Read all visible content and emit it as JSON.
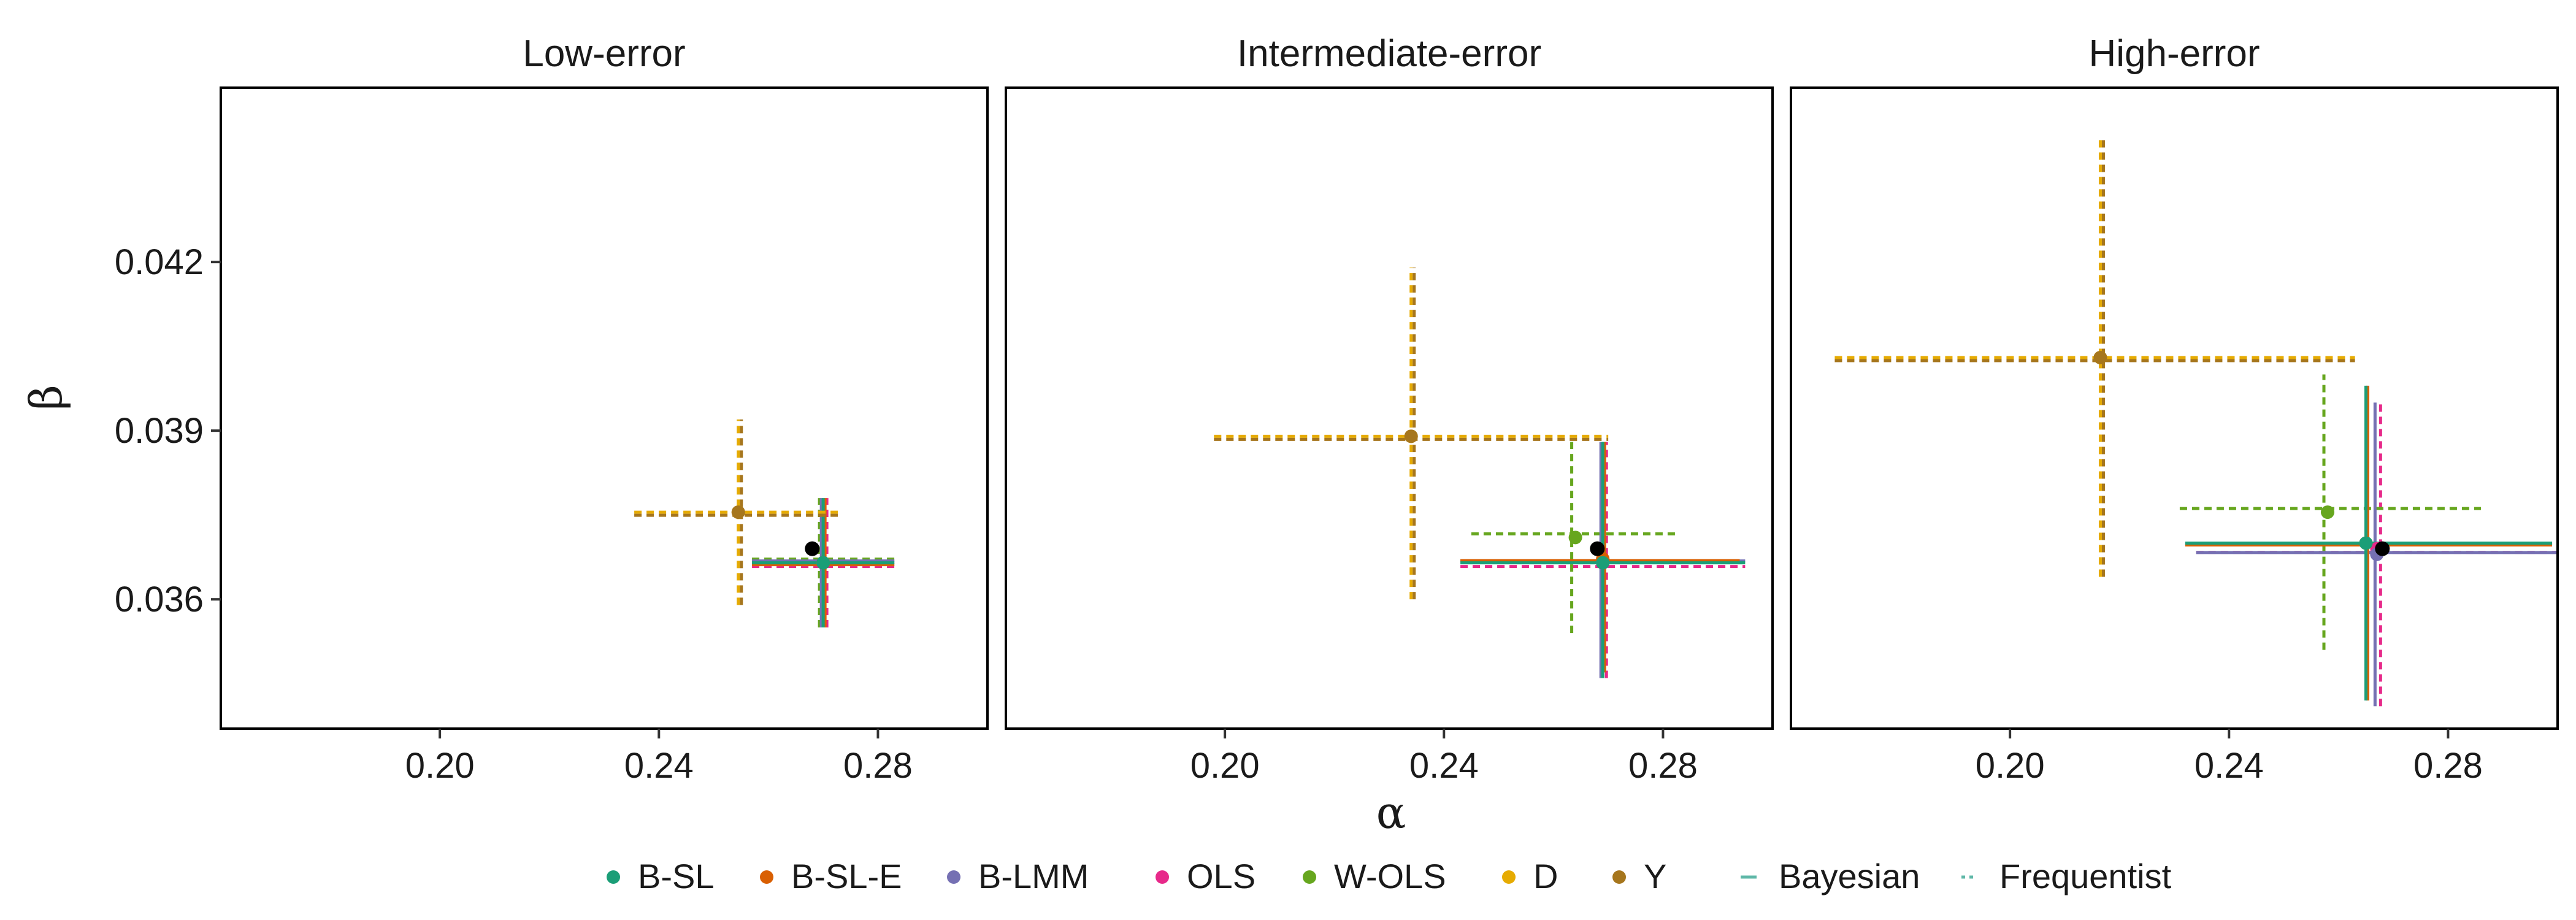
{
  "chart_data": {
    "type": "scatter",
    "xlabel": "α",
    "ylabel": "β",
    "xlim": [
      0.16,
      0.3
    ],
    "ylim": [
      0.0337,
      0.0451
    ],
    "xticks": [
      "0.20",
      "0.24",
      "0.28"
    ],
    "xtick_values": [
      0.2,
      0.24,
      0.28
    ],
    "yticks": [
      "0.036",
      "0.039",
      "0.042"
    ],
    "ytick_values": [
      0.036,
      0.039,
      0.042
    ],
    "grid": false,
    "legend_position": "bottom",
    "legend": {
      "methods": [
        {
          "name": "B-SL",
          "color": "#1b9e77"
        },
        {
          "name": "B-SL-E",
          "color": "#d95f02"
        },
        {
          "name": "B-LMM",
          "color": "#7570b3"
        },
        {
          "name": "OLS",
          "color": "#e7298a"
        },
        {
          "name": "W-OLS",
          "color": "#66a61e"
        },
        {
          "name": "D",
          "color": "#e6ab02"
        },
        {
          "name": "Y",
          "color": "#a6761d"
        }
      ],
      "linetypes": [
        {
          "name": "Bayesian",
          "dash": "solid"
        },
        {
          "name": "Frequentist",
          "dash": "dashed"
        }
      ]
    },
    "panels": [
      {
        "title": "Low-error",
        "truth": {
          "x": 0.268,
          "y": 0.0369
        },
        "estimates": [
          {
            "method": "B-SL",
            "type": "Bayesian",
            "x": 0.27,
            "y": 0.03665,
            "xlo": 0.257,
            "xhi": 0.283,
            "ylo": 0.0355,
            "yhi": 0.0378
          },
          {
            "method": "B-SL-E",
            "type": "Bayesian",
            "x": 0.27,
            "y": 0.03665,
            "xlo": 0.257,
            "xhi": 0.283,
            "ylo": 0.0355,
            "yhi": 0.0378
          },
          {
            "method": "B-LMM",
            "type": "Bayesian",
            "x": 0.27,
            "y": 0.03665,
            "xlo": 0.257,
            "xhi": 0.283,
            "ylo": 0.0355,
            "yhi": 0.0378
          },
          {
            "method": "OLS",
            "type": "Frequentist",
            "x": 0.27,
            "y": 0.03665,
            "xlo": 0.257,
            "xhi": 0.283,
            "ylo": 0.0355,
            "yhi": 0.0378
          },
          {
            "method": "W-OLS",
            "type": "Frequentist",
            "x": 0.27,
            "y": 0.03665,
            "xlo": 0.257,
            "xhi": 0.283,
            "ylo": 0.0355,
            "yhi": 0.0378
          },
          {
            "method": "D",
            "type": "Frequentist",
            "x": 0.2545,
            "y": 0.03755,
            "xlo": 0.2355,
            "xhi": 0.2735,
            "ylo": 0.0359,
            "yhi": 0.0392
          },
          {
            "method": "Y",
            "type": "Frequentist",
            "x": 0.2545,
            "y": 0.03755,
            "xlo": 0.2355,
            "xhi": 0.2735,
            "ylo": 0.0359,
            "yhi": 0.0392
          }
        ]
      },
      {
        "title": "Intermediate-error",
        "truth": {
          "x": 0.268,
          "y": 0.0369
        },
        "estimates": [
          {
            "method": "B-SL",
            "type": "Bayesian",
            "x": 0.269,
            "y": 0.03665,
            "xlo": 0.243,
            "xhi": 0.295,
            "ylo": 0.0346,
            "yhi": 0.0388
          },
          {
            "method": "B-SL-E",
            "type": "Bayesian",
            "x": 0.269,
            "y": 0.03672,
            "xlo": 0.243,
            "xhi": 0.294,
            "ylo": 0.0347,
            "yhi": 0.0388
          },
          {
            "method": "B-LMM",
            "type": "Bayesian",
            "x": 0.269,
            "y": 0.03665,
            "xlo": 0.243,
            "xhi": 0.295,
            "ylo": 0.0346,
            "yhi": 0.0388
          },
          {
            "method": "OLS",
            "type": "Frequentist",
            "x": 0.269,
            "y": 0.03665,
            "xlo": 0.243,
            "xhi": 0.295,
            "ylo": 0.0346,
            "yhi": 0.0388
          },
          {
            "method": "W-OLS",
            "type": "Frequentist",
            "x": 0.264,
            "y": 0.0371,
            "xlo": 0.245,
            "xhi": 0.283,
            "ylo": 0.0354,
            "yhi": 0.0388
          },
          {
            "method": "D",
            "type": "Frequentist",
            "x": 0.234,
            "y": 0.0389,
            "xlo": 0.198,
            "xhi": 0.27,
            "ylo": 0.036,
            "yhi": 0.0419
          },
          {
            "method": "Y",
            "type": "Frequentist",
            "x": 0.234,
            "y": 0.0389,
            "xlo": 0.198,
            "xhi": 0.27,
            "ylo": 0.036,
            "yhi": 0.0419
          }
        ]
      },
      {
        "title": "High-error",
        "truth": {
          "x": 0.268,
          "y": 0.0369
        },
        "estimates": [
          {
            "method": "B-SL",
            "type": "Bayesian",
            "x": 0.265,
            "y": 0.037,
            "xlo": 0.232,
            "xhi": 0.299,
            "ylo": 0.0342,
            "yhi": 0.0398
          },
          {
            "method": "B-SL-E",
            "type": "Bayesian",
            "x": 0.265,
            "y": 0.037,
            "xlo": 0.232,
            "xhi": 0.299,
            "ylo": 0.0342,
            "yhi": 0.0398
          },
          {
            "method": "B-LMM",
            "type": "Bayesian",
            "x": 0.267,
            "y": 0.0368,
            "xlo": 0.234,
            "xhi": 0.3,
            "ylo": 0.0341,
            "yhi": 0.0395
          },
          {
            "method": "OLS",
            "type": "Frequentist",
            "x": 0.267,
            "y": 0.0369,
            "xlo": 0.234,
            "xhi": 0.3,
            "ylo": 0.0341,
            "yhi": 0.0395
          },
          {
            "method": "W-OLS",
            "type": "Frequentist",
            "x": 0.258,
            "y": 0.03755,
            "xlo": 0.231,
            "xhi": 0.286,
            "ylo": 0.0351,
            "yhi": 0.04
          },
          {
            "method": "D",
            "type": "Frequentist",
            "x": 0.2165,
            "y": 0.0403,
            "xlo": 0.168,
            "xhi": 0.263,
            "ylo": 0.0364,
            "yhi": 0.0442
          },
          {
            "method": "Y",
            "type": "Frequentist",
            "x": 0.2165,
            "y": 0.0403,
            "xlo": 0.168,
            "xhi": 0.263,
            "ylo": 0.0364,
            "yhi": 0.0442
          }
        ]
      }
    ]
  }
}
